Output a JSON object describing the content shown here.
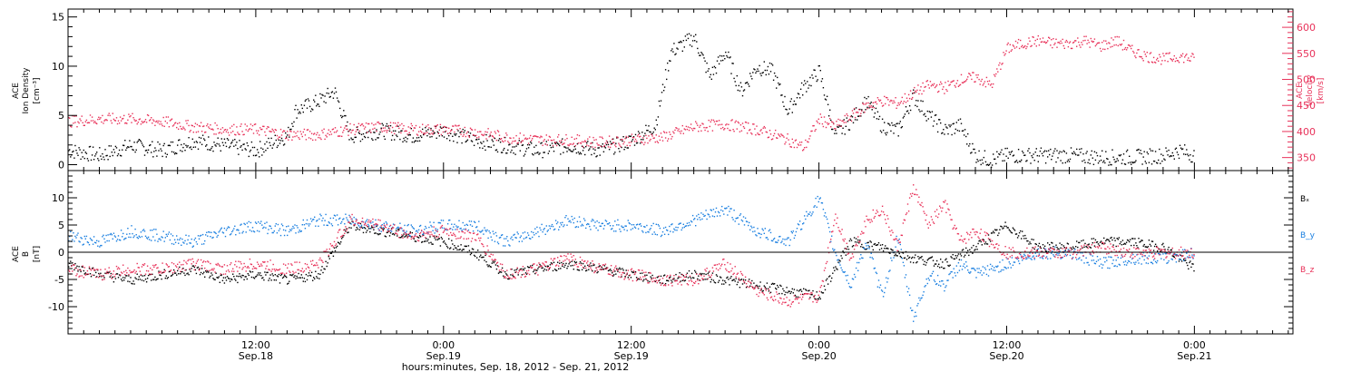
{
  "colors": {
    "black": "#000000",
    "red": "#e8325a",
    "blue": "#1a7fe0",
    "frame": "#000000"
  },
  "xaxis": {
    "title": "hours:minutes, Sep. 18, 2012 - Sep. 21, 2012",
    "ticks": [
      {
        "t": 12,
        "time": "12:00",
        "date": "Sep.18"
      },
      {
        "t": 24,
        "time": "0:00",
        "date": "Sep.19"
      },
      {
        "t": 36,
        "time": "12:00",
        "date": "Sep.19"
      },
      {
        "t": 48,
        "time": "0:00",
        "date": "Sep.20"
      },
      {
        "t": 60,
        "time": "12:00",
        "date": "Sep.20"
      },
      {
        "t": 72,
        "time": "0:00",
        "date": "Sep.21"
      }
    ]
  },
  "chart_data": [
    {
      "type": "scatter",
      "panel": "top",
      "ylabel_left": [
        "ACE",
        "Ion Density",
        "[cm⁻³]"
      ],
      "ylabel_right": [
        "ACE",
        "Velocity",
        "[km/s]"
      ],
      "xlim": [
        0,
        78.3
      ],
      "ylim_left": [
        -0.6,
        15.8
      ],
      "ylim_right": [
        325,
        635
      ],
      "yticks_left": [
        0,
        5,
        10,
        15
      ],
      "yticks_right": [
        350,
        400,
        450,
        500,
        550,
        600
      ],
      "grid": false,
      "series": [
        {
          "axis": "left",
          "color": "#000000",
          "x": [
            0,
            2,
            4,
            6,
            8,
            10,
            12,
            14,
            14.5,
            16,
            17,
            18,
            20,
            22,
            24,
            26,
            28,
            30,
            32,
            34,
            36,
            37.5,
            38.5,
            40,
            41,
            42,
            43,
            44,
            45,
            46,
            47,
            48,
            49,
            50,
            51,
            52,
            53,
            54,
            55,
            56,
            57,
            57.5,
            58,
            59,
            60,
            62,
            64,
            66,
            68,
            70,
            71,
            72
          ],
          "values": [
            1.5,
            1.0,
            2.0,
            1.5,
            2.5,
            2.0,
            1.5,
            3.0,
            5.5,
            6.5,
            7.5,
            3.0,
            3.5,
            3.0,
            3.5,
            2.5,
            2.0,
            1.5,
            2.0,
            1.5,
            2.5,
            4.0,
            11.5,
            13.0,
            9.0,
            11.5,
            7.5,
            10.0,
            9.5,
            5.5,
            8.0,
            9.5,
            3.0,
            4.5,
            6.5,
            4.0,
            3.5,
            7.0,
            5.0,
            3.5,
            4.0,
            2.5,
            1.0,
            0.5,
            1.0,
            1.0,
            1.0,
            0.8,
            0.8,
            1.0,
            1.5,
            1.0
          ]
        },
        {
          "axis": "right",
          "color": "#e8325a",
          "x": [
            0,
            2,
            4,
            6,
            8,
            10,
            12,
            14,
            16,
            18,
            20,
            22,
            24,
            26,
            28,
            30,
            32,
            34,
            36,
            38,
            40,
            42,
            44,
            46,
            47,
            48,
            49,
            50,
            51,
            52,
            53,
            54,
            55,
            56,
            57,
            58,
            59,
            60,
            61,
            62,
            63,
            64,
            65,
            66,
            67,
            68,
            69,
            70,
            71,
            72
          ],
          "values": [
            420,
            425,
            425,
            420,
            410,
            405,
            405,
            395,
            395,
            405,
            410,
            405,
            405,
            400,
            390,
            385,
            385,
            380,
            385,
            390,
            410,
            415,
            405,
            385,
            370,
            425,
            410,
            430,
            450,
            460,
            455,
            475,
            490,
            485,
            500,
            505,
            490,
            560,
            570,
            575,
            570,
            570,
            575,
            565,
            575,
            555,
            545,
            540,
            545,
            540
          ]
        }
      ]
    },
    {
      "type": "scatter",
      "panel": "bottom",
      "ylabel": [
        "ACE",
        "B",
        "[nT]"
      ],
      "xlim": [
        0,
        78.3
      ],
      "ylim": [
        -15,
        15
      ],
      "yticks": [
        -10,
        -5,
        0,
        5,
        10
      ],
      "zero_line": true,
      "grid": false,
      "legend": "right",
      "series": [
        {
          "name": "Bₓ",
          "color": "#000000",
          "x": [
            0,
            2,
            4,
            6,
            8,
            10,
            12,
            14,
            16,
            18,
            20,
            22,
            24,
            26,
            28,
            30,
            32,
            34,
            36,
            38,
            40,
            42,
            44,
            46,
            48,
            50,
            52,
            54,
            56,
            58,
            60,
            62,
            64,
            66,
            68,
            70,
            71,
            72
          ],
          "values": [
            -2,
            -4,
            -5,
            -4,
            -3,
            -5,
            -4,
            -5,
            -4,
            5,
            4,
            3,
            2,
            0,
            -4,
            -3,
            -2,
            -3,
            -4,
            -5,
            -4,
            -5,
            -6,
            -7,
            -8,
            2,
            1,
            -1,
            -2,
            1,
            5,
            1,
            1,
            2,
            2,
            1,
            -1,
            -3
          ]
        },
        {
          "name": "B_y",
          "color": "#1a7fe0",
          "x": [
            0,
            2,
            4,
            6,
            8,
            10,
            12,
            14,
            16,
            18,
            20,
            22,
            24,
            26,
            28,
            30,
            32,
            34,
            36,
            38,
            40,
            42,
            44,
            46,
            48,
            49,
            50,
            51,
            52,
            53,
            54,
            55,
            56,
            57,
            58,
            60,
            62,
            64,
            66,
            68,
            70,
            72
          ],
          "values": [
            3,
            2,
            4,
            3,
            2,
            4,
            5,
            4,
            6,
            6,
            5,
            4,
            5,
            5,
            2,
            4,
            6,
            5,
            5,
            4,
            6,
            8,
            4,
            2,
            10,
            0,
            -6,
            2,
            -8,
            3,
            -12,
            -4,
            -6,
            -2,
            -4,
            -2,
            0,
            0,
            -2,
            -1,
            -1,
            0
          ]
        },
        {
          "name": "B_z",
          "color": "#e8325a",
          "x": [
            0,
            2,
            4,
            6,
            8,
            10,
            12,
            14,
            16,
            18,
            20,
            22,
            24,
            26,
            28,
            30,
            32,
            34,
            36,
            38,
            40,
            42,
            44,
            46,
            48,
            49,
            50,
            51,
            52,
            53,
            54,
            55,
            56,
            57,
            58,
            60,
            62,
            64,
            66,
            68,
            70,
            72
          ],
          "values": [
            -3,
            -4,
            -3,
            -3,
            -2,
            -3,
            -2,
            -3,
            -2,
            6,
            5,
            3,
            4,
            3,
            -4,
            -3,
            -1,
            -3,
            -4,
            -5,
            -5,
            -2,
            -7,
            -9,
            -8,
            7,
            -1,
            6,
            8,
            1,
            12,
            5,
            9,
            2,
            4,
            0,
            0,
            0,
            1,
            0,
            0,
            0
          ]
        }
      ]
    }
  ]
}
